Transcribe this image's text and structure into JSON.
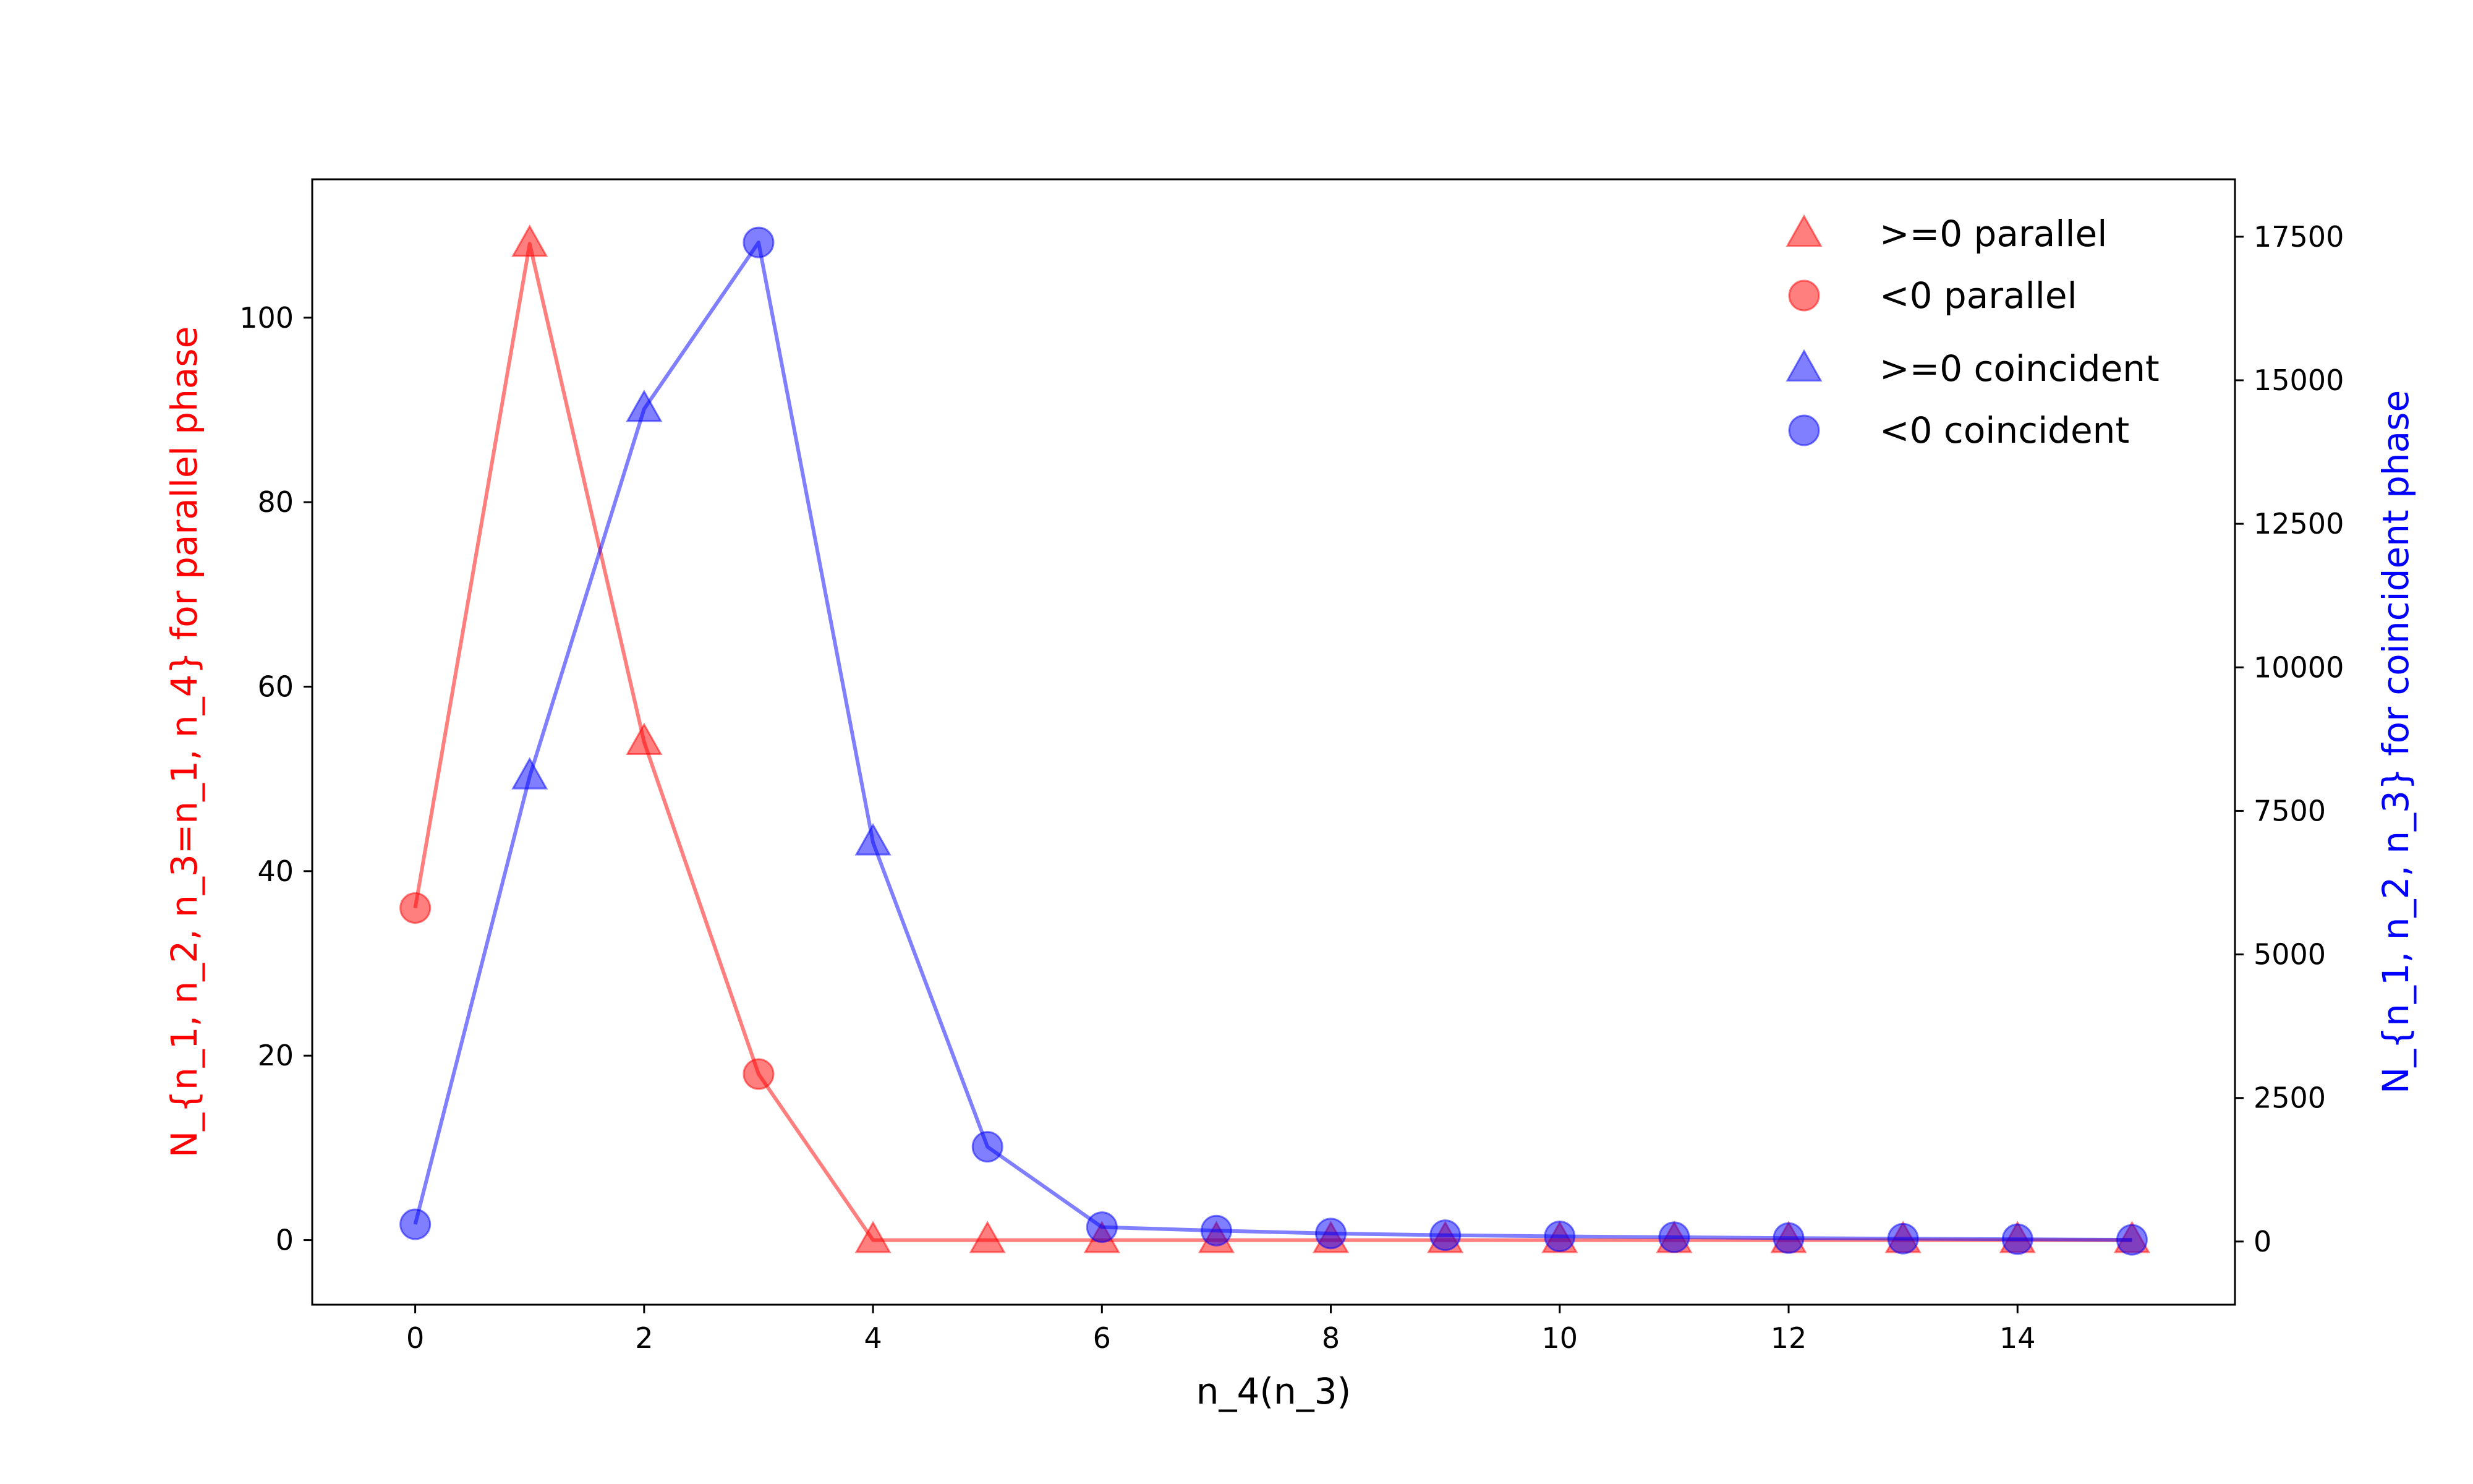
{
  "chart_data": {
    "type": "line",
    "title": "",
    "xlabel": "n_4(n_3)",
    "x": [
      0,
      1,
      2,
      3,
      4,
      5,
      6,
      7,
      8,
      9,
      10,
      11,
      12,
      13,
      14,
      15
    ],
    "xlim": [
      -0.9,
      15.9
    ],
    "xticks": [
      0,
      2,
      4,
      6,
      8,
      10,
      12,
      14
    ],
    "left_axis": {
      "ylabel": "N_{n_1, n_2, n_3=n_1, n_4} for parallel phase",
      "color": "#ff0000",
      "ylim": [
        -7,
        115
      ],
      "yticks": [
        0,
        20,
        40,
        60,
        80,
        100
      ]
    },
    "right_axis": {
      "ylabel": "N_{n_1, n_2, n_3} for coincident phase",
      "color": "#0000ff",
      "ylim": [
        -1100,
        18500
      ],
      "yticks": [
        0,
        2500,
        5000,
        7500,
        10000,
        12500,
        15000,
        17500
      ]
    },
    "series": [
      {
        "axis": "left",
        "color": "#ff0000",
        "values": [
          36,
          108,
          54,
          18,
          0,
          0,
          0,
          0,
          0,
          0,
          0,
          0,
          0,
          0,
          0,
          0
        ],
        "markers": [
          "circle",
          "triangle",
          "triangle",
          "circle",
          "triangle",
          "triangle",
          "triangle",
          "triangle",
          "triangle",
          "triangle",
          "triangle",
          "triangle",
          "triangle",
          "triangle",
          "triangle",
          "triangle"
        ]
      },
      {
        "axis": "right",
        "color": "#0000ff",
        "values": [
          300,
          8100,
          14500,
          17400,
          6950,
          1650,
          250,
          190,
          140,
          110,
          90,
          75,
          60,
          50,
          40,
          30
        ],
        "markers": [
          "circle",
          "triangle",
          "triangle",
          "circle",
          "triangle",
          "circle",
          "circle",
          "circle",
          "circle",
          "circle",
          "circle",
          "circle",
          "circle",
          "circle",
          "circle",
          "circle"
        ]
      }
    ],
    "legend": {
      "placement": "top-right",
      "entries": [
        {
          "label": ">=0 parallel",
          "marker": "triangle",
          "color": "#ff0000"
        },
        {
          "label": "<0 parallel",
          "marker": "circle",
          "color": "#ff0000"
        },
        {
          "label": ">=0 coincident",
          "marker": "triangle",
          "color": "#0000ff"
        },
        {
          "label": "<0 coincident",
          "marker": "circle",
          "color": "#0000ff"
        }
      ]
    }
  }
}
